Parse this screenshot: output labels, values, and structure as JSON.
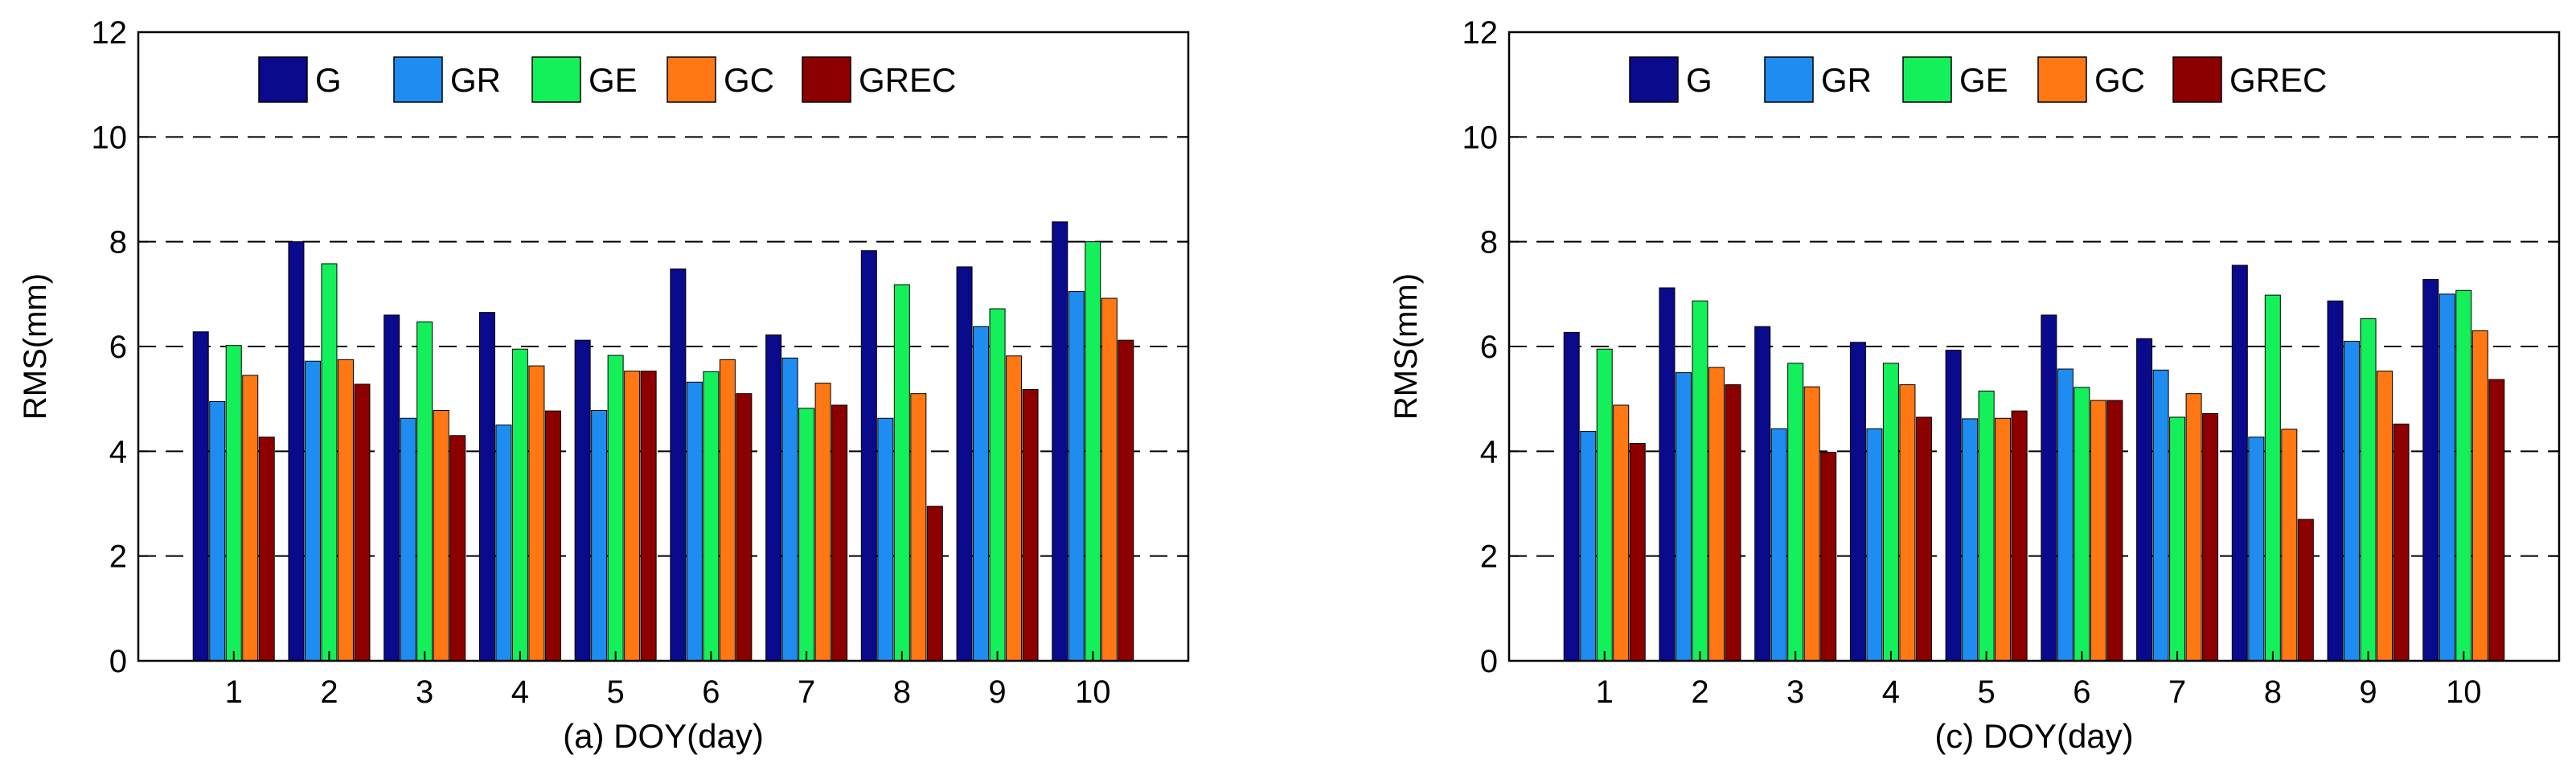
{
  "chart_data": [
    {
      "type": "bar",
      "caption": "(a) DOY(day)",
      "ylabel": "RMS(mm)",
      "ylim": [
        0,
        12
      ],
      "yticks": [
        0,
        2,
        4,
        6,
        8,
        10,
        12
      ],
      "grid": "dashed horizontal",
      "legend_position": "top",
      "categories": [
        "1",
        "2",
        "3",
        "4",
        "5",
        "6",
        "7",
        "8",
        "9",
        "10"
      ],
      "series": [
        {
          "name": "G",
          "color": "#0a0a8c",
          "values": [
            6.28,
            8.0,
            6.6,
            6.65,
            6.12,
            7.48,
            6.22,
            7.83,
            7.52,
            8.38
          ]
        },
        {
          "name": "GR",
          "color": "#1e8cf0",
          "values": [
            4.95,
            5.72,
            4.63,
            4.5,
            4.78,
            5.32,
            5.78,
            4.63,
            6.38,
            7.05
          ]
        },
        {
          "name": "GE",
          "color": "#14f05a",
          "values": [
            6.02,
            7.58,
            6.47,
            5.95,
            5.83,
            5.52,
            4.82,
            7.18,
            6.72,
            8.0
          ]
        },
        {
          "name": "GC",
          "color": "#ff7814",
          "values": [
            5.45,
            5.75,
            4.78,
            5.63,
            5.53,
            5.75,
            5.3,
            5.1,
            5.82,
            6.92
          ]
        },
        {
          "name": "GREC",
          "color": "#8c0000",
          "values": [
            4.27,
            5.28,
            4.3,
            4.77,
            5.53,
            5.1,
            4.88,
            2.95,
            5.18,
            6.12
          ]
        }
      ]
    },
    {
      "type": "bar",
      "caption": "(c) DOY(day)",
      "ylabel": "RMS(mm)",
      "ylim": [
        0,
        12
      ],
      "yticks": [
        0,
        2,
        4,
        6,
        8,
        10,
        12
      ],
      "grid": "dashed horizontal",
      "legend_position": "top",
      "categories": [
        "1",
        "2",
        "3",
        "4",
        "5",
        "6",
        "7",
        "8",
        "9",
        "10"
      ],
      "series": [
        {
          "name": "G",
          "color": "#0a0a8c",
          "values": [
            6.27,
            7.12,
            6.38,
            6.08,
            5.93,
            6.6,
            6.15,
            7.55,
            6.87,
            7.28
          ]
        },
        {
          "name": "GR",
          "color": "#1e8cf0",
          "values": [
            4.38,
            5.5,
            4.43,
            4.43,
            4.62,
            5.57,
            5.55,
            4.27,
            6.1,
            7.0
          ]
        },
        {
          "name": "GE",
          "color": "#14f05a",
          "values": [
            5.95,
            6.87,
            5.68,
            5.68,
            5.15,
            5.22,
            4.65,
            6.98,
            6.53,
            7.07
          ]
        },
        {
          "name": "GC",
          "color": "#ff7814",
          "values": [
            4.88,
            5.6,
            5.23,
            5.27,
            4.63,
            4.97,
            5.1,
            4.42,
            5.53,
            6.3
          ]
        },
        {
          "name": "GREC",
          "color": "#8c0000",
          "values": [
            4.15,
            5.27,
            3.98,
            4.65,
            4.77,
            4.97,
            4.72,
            2.7,
            4.52,
            5.37
          ]
        }
      ]
    }
  ]
}
